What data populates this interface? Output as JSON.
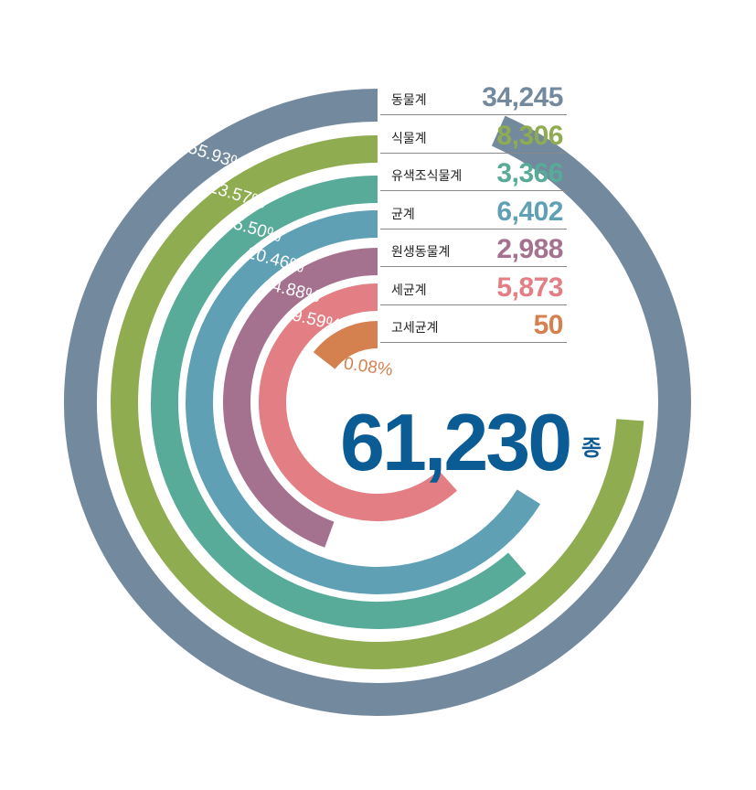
{
  "chart_data": {
    "type": "radial-bar",
    "total": "61,230",
    "total_unit": "종",
    "series": [
      {
        "name": "동물계",
        "value": 34245,
        "value_label": "34,245",
        "percent": 55.93,
        "percent_label": "55.93%",
        "color": "#73899d"
      },
      {
        "name": "식물계",
        "value": 8306,
        "value_label": "8,306",
        "percent": 13.57,
        "percent_label": "13.57%",
        "color": "#8fac51"
      },
      {
        "name": "유색조식물계",
        "value": 3366,
        "value_label": "3,366",
        "percent": 5.5,
        "percent_label": "5.50%",
        "color": "#58aa99"
      },
      {
        "name": "균계",
        "value": 6402,
        "value_label": "6,402",
        "percent": 10.46,
        "percent_label": "10.46%",
        "color": "#5fa0b5"
      },
      {
        "name": "원생동물계",
        "value": 2988,
        "value_label": "2,988",
        "percent": 4.88,
        "percent_label": "4.88%",
        "color": "#a4728f"
      },
      {
        "name": "세균계",
        "value": 5873,
        "value_label": "5,873",
        "percent": 9.59,
        "percent_label": "9.59%",
        "color": "#e27e84"
      },
      {
        "name": "고세균계",
        "value": 50,
        "value_label": "50",
        "percent": 0.08,
        "percent_label": "0.08%",
        "color": "#d5804f"
      }
    ]
  }
}
